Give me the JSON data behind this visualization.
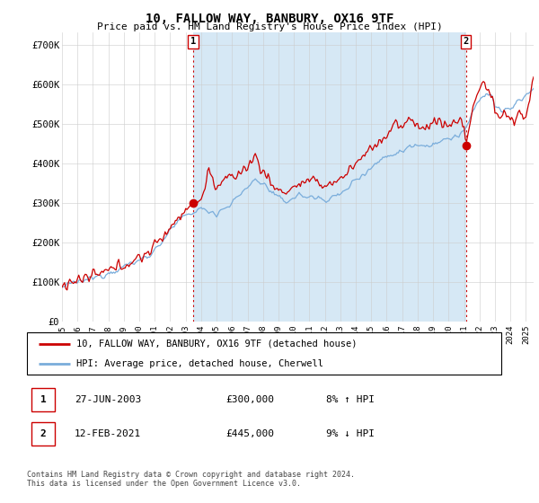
{
  "title": "10, FALLOW WAY, BANBURY, OX16 9TF",
  "subtitle": "Price paid vs. HM Land Registry's House Price Index (HPI)",
  "ylabel_ticks": [
    "£0",
    "£100K",
    "£200K",
    "£300K",
    "£400K",
    "£500K",
    "£600K",
    "£700K"
  ],
  "ytick_values": [
    0,
    100000,
    200000,
    300000,
    400000,
    500000,
    600000,
    700000
  ],
  "ylim": [
    0,
    730000
  ],
  "xlim_start": 1995.0,
  "xlim_end": 2025.5,
  "sale1_date": 2003.49,
  "sale1_price": 300000,
  "sale2_date": 2021.12,
  "sale2_price": 445000,
  "hpi_color": "#7aaddb",
  "hpi_fill_color": "#d6e8f5",
  "price_color": "#cc0000",
  "vline_color": "#cc0000",
  "dot_color": "#cc0000",
  "legend_label1": "10, FALLOW WAY, BANBURY, OX16 9TF (detached house)",
  "legend_label2": "HPI: Average price, detached house, Cherwell",
  "table_row1": [
    "1",
    "27-JUN-2003",
    "£300,000",
    "8% ↑ HPI"
  ],
  "table_row2": [
    "2",
    "12-FEB-2021",
    "£445,000",
    "9% ↓ HPI"
  ],
  "footnote": "Contains HM Land Registry data © Crown copyright and database right 2024.\nThis data is licensed under the Open Government Licence v3.0.",
  "grid_color": "#cccccc",
  "xtick_years": [
    1995,
    1996,
    1997,
    1998,
    1999,
    2000,
    2001,
    2002,
    2003,
    2004,
    2005,
    2006,
    2007,
    2008,
    2009,
    2010,
    2011,
    2012,
    2013,
    2014,
    2015,
    2016,
    2017,
    2018,
    2019,
    2020,
    2021,
    2022,
    2023,
    2024,
    2025
  ]
}
